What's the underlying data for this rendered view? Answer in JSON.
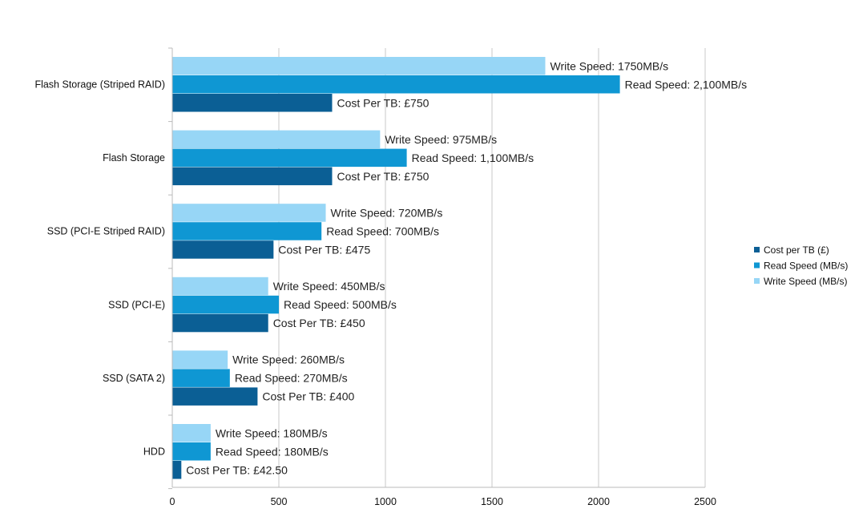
{
  "chart_data": {
    "type": "bar",
    "orientation": "horizontal",
    "categories": [
      "Flash Storage (Striped RAID)",
      "Flash Storage",
      "SSD (PCI-E Striped RAID)",
      "SSD (PCI-E)",
      "SSD (SATA 2)",
      "HDD"
    ],
    "series": [
      {
        "name": "Cost per TB (£)",
        "color": "#0b5f95",
        "values": [
          750,
          750,
          475,
          450,
          400,
          42.5
        ],
        "labels": [
          "Cost Per TB: £750",
          "Cost Per TB: £750",
          "Cost Per TB: £475",
          "Cost Per TB: £450",
          "Cost Per TB: £400",
          "Cost Per TB: £42.50"
        ]
      },
      {
        "name": "Read Speed (MB/s)",
        "color": "#0f97d3",
        "values": [
          2100,
          1100,
          700,
          500,
          270,
          180
        ],
        "labels": [
          "Read Speed: 2,100MB/s",
          "Read Speed: 1,100MB/s",
          "Read Speed: 700MB/s",
          "Read Speed: 500MB/s",
          "Read Speed: 270MB/s",
          "Read Speed: 180MB/s"
        ]
      },
      {
        "name": "Write Speed (MB/s)",
        "color": "#97d6f6",
        "values": [
          1750,
          975,
          720,
          450,
          260,
          180
        ],
        "labels": [
          "Write Speed: 1750MB/s",
          "Write Speed: 975MB/s",
          "Write Speed: 720MB/s",
          "Write Speed: 450MB/s",
          "Write Speed: 260MB/s",
          "Write Speed: 180MB/s"
        ]
      }
    ],
    "xticks": [
      "0",
      "500",
      "1000",
      "1500",
      "2000",
      "2500"
    ],
    "xlim": [
      0,
      2500
    ],
    "grid": true,
    "legend_position": "right"
  }
}
